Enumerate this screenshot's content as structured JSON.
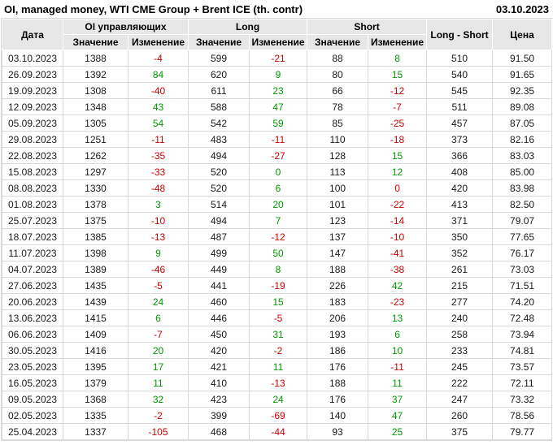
{
  "header": {
    "title": "OI, managed money, WTI CME Group + Brent ICE (th. contr)",
    "date": "03.10.2023"
  },
  "chart_data": {
    "type": "table",
    "title": "OI, managed money, WTI CME Group + Brent ICE (th. contr)",
    "headers": {
      "date": "Дата",
      "group_oi": "OI управляющих",
      "group_long": "Long",
      "group_short": "Short",
      "value": "Значение",
      "change": "Изменение",
      "long_short": "Long - Short",
      "price": "Цена"
    },
    "rows": [
      {
        "date": "03.10.2023",
        "oi_value": "1388",
        "oi_change": "-4",
        "oi_change_color": "red",
        "long_value": "599",
        "long_change": "-21",
        "long_change_color": "red",
        "short_value": "88",
        "short_change": "8",
        "short_change_color": "green",
        "long_short": "510",
        "price": "91.50"
      },
      {
        "date": "26.09.2023",
        "oi_value": "1392",
        "oi_change": "84",
        "oi_change_color": "green",
        "long_value": "620",
        "long_change": "9",
        "long_change_color": "green",
        "short_value": "80",
        "short_change": "15",
        "short_change_color": "green",
        "long_short": "540",
        "price": "91.65"
      },
      {
        "date": "19.09.2023",
        "oi_value": "1308",
        "oi_change": "-40",
        "oi_change_color": "red",
        "long_value": "611",
        "long_change": "23",
        "long_change_color": "green",
        "short_value": "66",
        "short_change": "-12",
        "short_change_color": "red",
        "long_short": "545",
        "price": "92.35"
      },
      {
        "date": "12.09.2023",
        "oi_value": "1348",
        "oi_change": "43",
        "oi_change_color": "green",
        "long_value": "588",
        "long_change": "47",
        "long_change_color": "green",
        "short_value": "78",
        "short_change": "-7",
        "short_change_color": "red",
        "long_short": "511",
        "price": "89.08"
      },
      {
        "date": "05.09.2023",
        "oi_value": "1305",
        "oi_change": "54",
        "oi_change_color": "green",
        "long_value": "542",
        "long_change": "59",
        "long_change_color": "green",
        "short_value": "85",
        "short_change": "-25",
        "short_change_color": "red",
        "long_short": "457",
        "price": "87.05"
      },
      {
        "date": "29.08.2023",
        "oi_value": "1251",
        "oi_change": "-11",
        "oi_change_color": "red",
        "long_value": "483",
        "long_change": "-11",
        "long_change_color": "red",
        "short_value": "110",
        "short_change": "-18",
        "short_change_color": "red",
        "long_short": "373",
        "price": "82.16"
      },
      {
        "date": "22.08.2023",
        "oi_value": "1262",
        "oi_change": "-35",
        "oi_change_color": "red",
        "long_value": "494",
        "long_change": "-27",
        "long_change_color": "red",
        "short_value": "128",
        "short_change": "15",
        "short_change_color": "green",
        "long_short": "366",
        "price": "83.03"
      },
      {
        "date": "15.08.2023",
        "oi_value": "1297",
        "oi_change": "-33",
        "oi_change_color": "red",
        "long_value": "520",
        "long_change": "0",
        "long_change_color": "green",
        "short_value": "113",
        "short_change": "12",
        "short_change_color": "green",
        "long_short": "408",
        "price": "85.00"
      },
      {
        "date": "08.08.2023",
        "oi_value": "1330",
        "oi_change": "-48",
        "oi_change_color": "red",
        "long_value": "520",
        "long_change": "6",
        "long_change_color": "green",
        "short_value": "100",
        "short_change": "0",
        "short_change_color": "red",
        "long_short": "420",
        "price": "83.98"
      },
      {
        "date": "01.08.2023",
        "oi_value": "1378",
        "oi_change": "3",
        "oi_change_color": "green",
        "long_value": "514",
        "long_change": "20",
        "long_change_color": "green",
        "short_value": "101",
        "short_change": "-22",
        "short_change_color": "red",
        "long_short": "413",
        "price": "82.50"
      },
      {
        "date": "25.07.2023",
        "oi_value": "1375",
        "oi_change": "-10",
        "oi_change_color": "red",
        "long_value": "494",
        "long_change": "7",
        "long_change_color": "green",
        "short_value": "123",
        "short_change": "-14",
        "short_change_color": "red",
        "long_short": "371",
        "price": "79.07"
      },
      {
        "date": "18.07.2023",
        "oi_value": "1385",
        "oi_change": "-13",
        "oi_change_color": "red",
        "long_value": "487",
        "long_change": "-12",
        "long_change_color": "red",
        "short_value": "137",
        "short_change": "-10",
        "short_change_color": "red",
        "long_short": "350",
        "price": "77.65"
      },
      {
        "date": "11.07.2023",
        "oi_value": "1398",
        "oi_change": "9",
        "oi_change_color": "green",
        "long_value": "499",
        "long_change": "50",
        "long_change_color": "green",
        "short_value": "147",
        "short_change": "-41",
        "short_change_color": "red",
        "long_short": "352",
        "price": "76.17"
      },
      {
        "date": "04.07.2023",
        "oi_value": "1389",
        "oi_change": "-46",
        "oi_change_color": "red",
        "long_value": "449",
        "long_change": "8",
        "long_change_color": "green",
        "short_value": "188",
        "short_change": "-38",
        "short_change_color": "red",
        "long_short": "261",
        "price": "73.03"
      },
      {
        "date": "27.06.2023",
        "oi_value": "1435",
        "oi_change": "-5",
        "oi_change_color": "red",
        "long_value": "441",
        "long_change": "-19",
        "long_change_color": "red",
        "short_value": "226",
        "short_change": "42",
        "short_change_color": "green",
        "long_short": "215",
        "price": "71.51"
      },
      {
        "date": "20.06.2023",
        "oi_value": "1439",
        "oi_change": "24",
        "oi_change_color": "green",
        "long_value": "460",
        "long_change": "15",
        "long_change_color": "green",
        "short_value": "183",
        "short_change": "-23",
        "short_change_color": "red",
        "long_short": "277",
        "price": "74.20"
      },
      {
        "date": "13.06.2023",
        "oi_value": "1415",
        "oi_change": "6",
        "oi_change_color": "green",
        "long_value": "446",
        "long_change": "-5",
        "long_change_color": "red",
        "short_value": "206",
        "short_change": "13",
        "short_change_color": "green",
        "long_short": "240",
        "price": "72.48"
      },
      {
        "date": "06.06.2023",
        "oi_value": "1409",
        "oi_change": "-7",
        "oi_change_color": "red",
        "long_value": "450",
        "long_change": "31",
        "long_change_color": "green",
        "short_value": "193",
        "short_change": "6",
        "short_change_color": "green",
        "long_short": "258",
        "price": "73.94"
      },
      {
        "date": "30.05.2023",
        "oi_value": "1416",
        "oi_change": "20",
        "oi_change_color": "green",
        "long_value": "420",
        "long_change": "-2",
        "long_change_color": "red",
        "short_value": "186",
        "short_change": "10",
        "short_change_color": "green",
        "long_short": "233",
        "price": "74.81"
      },
      {
        "date": "23.05.2023",
        "oi_value": "1395",
        "oi_change": "17",
        "oi_change_color": "green",
        "long_value": "421",
        "long_change": "11",
        "long_change_color": "green",
        "short_value": "176",
        "short_change": "-11",
        "short_change_color": "red",
        "long_short": "245",
        "price": "73.57"
      },
      {
        "date": "16.05.2023",
        "oi_value": "1379",
        "oi_change": "11",
        "oi_change_color": "green",
        "long_value": "410",
        "long_change": "-13",
        "long_change_color": "red",
        "short_value": "188",
        "short_change": "11",
        "short_change_color": "green",
        "long_short": "222",
        "price": "72.11"
      },
      {
        "date": "09.05.2023",
        "oi_value": "1368",
        "oi_change": "32",
        "oi_change_color": "green",
        "long_value": "423",
        "long_change": "24",
        "long_change_color": "green",
        "short_value": "176",
        "short_change": "37",
        "short_change_color": "green",
        "long_short": "247",
        "price": "73.32"
      },
      {
        "date": "02.05.2023",
        "oi_value": "1335",
        "oi_change": "-2",
        "oi_change_color": "red",
        "long_value": "399",
        "long_change": "-69",
        "long_change_color": "red",
        "short_value": "140",
        "short_change": "47",
        "short_change_color": "green",
        "long_short": "260",
        "price": "78.56"
      },
      {
        "date": "25.04.2023",
        "oi_value": "1337",
        "oi_change": "-105",
        "oi_change_color": "red",
        "long_value": "468",
        "long_change": "-44",
        "long_change_color": "red",
        "short_value": "93",
        "short_change": "25",
        "short_change_color": "green",
        "long_short": "375",
        "price": "79.77"
      }
    ]
  },
  "colors": {
    "positive_change": "#009900",
    "negative_change": "#cc0000",
    "header_background": "#e7e7e7",
    "grid_border": "#d9d9d9"
  }
}
